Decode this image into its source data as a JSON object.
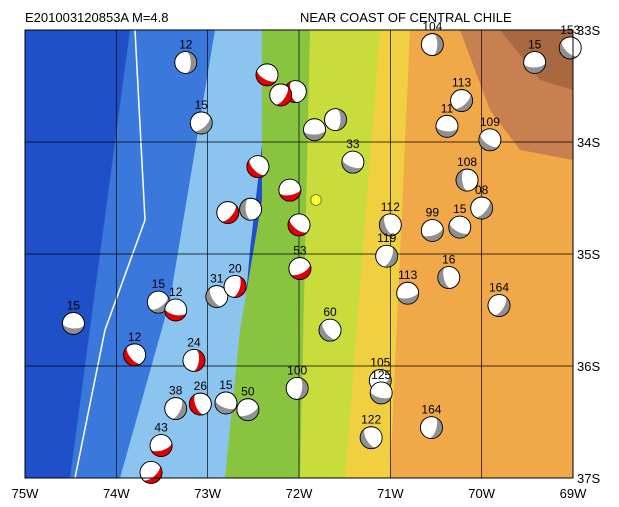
{
  "header": {
    "title": "E201003120853A M=4.8",
    "region": "NEAR COAST OF CENTRAL CHILE"
  },
  "map": {
    "lonlim": [
      -75,
      -69
    ],
    "latlim": [
      -37,
      -33
    ],
    "lonticks": [
      {
        "value": -75,
        "label": "75W"
      },
      {
        "value": -74,
        "label": "74W"
      },
      {
        "value": -73,
        "label": "73W"
      },
      {
        "value": -72,
        "label": "72W"
      },
      {
        "value": -71,
        "label": "71W"
      },
      {
        "value": -70,
        "label": "70W"
      },
      {
        "value": -69,
        "label": "69W"
      }
    ],
    "latticks": [
      {
        "value": -33,
        "label": "33S"
      },
      {
        "value": -34,
        "label": "34S"
      },
      {
        "value": -35,
        "label": "35S"
      },
      {
        "value": -36,
        "label": "36S"
      },
      {
        "value": -37,
        "label": "37S"
      }
    ],
    "events": [
      {
        "label": "12",
        "lon": -73.24,
        "lat": -33.29,
        "color": "#909090"
      },
      {
        "label": "15",
        "lon": -73.07,
        "lat": -33.83,
        "color": "#909090"
      },
      {
        "label": "15",
        "lon": -74.47,
        "lat": -35.62,
        "color": "#909090"
      },
      {
        "label": "12",
        "lon": -73.8,
        "lat": -35.9,
        "color": "#e00000"
      },
      {
        "label": "24",
        "lon": -73.15,
        "lat": -35.95,
        "color": "#e00000"
      },
      {
        "label": "15",
        "lon": -73.54,
        "lat": -35.43,
        "color": "#909090"
      },
      {
        "label": "12",
        "lon": -73.35,
        "lat": -35.5,
        "color": "#e00000"
      },
      {
        "label": "31",
        "lon": -72.9,
        "lat": -35.38,
        "color": "#909090"
      },
      {
        "label": "20",
        "lon": -72.7,
        "lat": -35.29,
        "color": "#e00000"
      },
      {
        "label": "53",
        "lon": -71.99,
        "lat": -35.13,
        "color": "#e00000"
      },
      {
        "label": "33",
        "lon": -71.41,
        "lat": -34.18,
        "color": "#909090"
      },
      {
        "label": "112",
        "lon": -71.0,
        "lat": -34.74,
        "color": "#909090"
      },
      {
        "label": "119",
        "lon": -71.04,
        "lat": -35.02,
        "color": "#909090"
      },
      {
        "label": "99",
        "lon": -70.54,
        "lat": -34.79,
        "color": "#909090"
      },
      {
        "label": "15",
        "lon": -70.24,
        "lat": -34.76,
        "color": "#909090"
      },
      {
        "label": "16",
        "lon": -70.36,
        "lat": -35.21,
        "color": "#909090"
      },
      {
        "label": "164",
        "lon": -69.81,
        "lat": -35.46,
        "color": "#909090"
      },
      {
        "label": "113",
        "lon": -70.81,
        "lat": -35.35,
        "color": "#909090"
      },
      {
        "label": "109",
        "lon": -69.91,
        "lat": -33.98,
        "color": "#909090"
      },
      {
        "label": "108",
        "lon": -70.16,
        "lat": -34.34,
        "color": "#909090"
      },
      {
        "label": "08",
        "lon": -70.0,
        "lat": -34.59,
        "color": "#909090"
      },
      {
        "label": "15",
        "lon": -69.42,
        "lat": -33.29,
        "color": "#909090"
      },
      {
        "label": "153",
        "lon": -69.03,
        "lat": -33.16,
        "color": "#909090"
      },
      {
        "label": "104",
        "lon": -70.54,
        "lat": -33.13,
        "color": "#909090"
      },
      {
        "label": "113",
        "lon": -70.22,
        "lat": -33.63,
        "color": "#909090"
      },
      {
        "label": "11",
        "lon": -70.38,
        "lat": -33.86,
        "color": "#909090"
      },
      {
        "label": "60",
        "lon": -71.66,
        "lat": -35.68,
        "color": "#909090"
      },
      {
        "label": "100",
        "lon": -72.02,
        "lat": -36.2,
        "color": "#909090"
      },
      {
        "label": "105",
        "lon": -71.11,
        "lat": -36.13,
        "color": "#909090"
      },
      {
        "label": "125",
        "lon": -71.1,
        "lat": -36.24,
        "color": "#909090"
      },
      {
        "label": "122",
        "lon": -71.21,
        "lat": -36.64,
        "color": "#909090"
      },
      {
        "label": "164",
        "lon": -70.55,
        "lat": -36.55,
        "color": "#909090"
      },
      {
        "label": "50",
        "lon": -72.56,
        "lat": -36.39,
        "color": "#909090"
      },
      {
        "label": "15",
        "lon": -72.8,
        "lat": -36.33,
        "color": "#909090"
      },
      {
        "label": "26",
        "lon": -73.08,
        "lat": -36.34,
        "color": "#e00000"
      },
      {
        "label": "38",
        "lon": -73.35,
        "lat": -36.38,
        "color": "#909090"
      },
      {
        "label": "43",
        "lon": -73.51,
        "lat": -36.71,
        "color": "#e00000"
      },
      {
        "lon": -72.35,
        "lat": -33.4,
        "color": "#e00000"
      },
      {
        "lon": -72.04,
        "lat": -33.55,
        "color": "#e00000"
      },
      {
        "lon": -72.2,
        "lat": -33.58,
        "color": "#e00000"
      },
      {
        "lon": -72.1,
        "lat": -34.43,
        "color": "#e00000"
      },
      {
        "lon": -72.0,
        "lat": -34.74,
        "color": "#e00000"
      },
      {
        "lon": -72.53,
        "lat": -34.6,
        "color": "#909090"
      },
      {
        "lon": -72.78,
        "lat": -34.63,
        "color": "#e00000"
      },
      {
        "lon": -71.83,
        "lat": -33.89,
        "color": "#909090"
      },
      {
        "lon": -72.45,
        "lat": -34.22,
        "color": "#e00000"
      },
      {
        "lon": -71.6,
        "lat": -33.8,
        "color": "#909090"
      },
      {
        "lon": -73.62,
        "lat": -36.95,
        "color": "#e00000"
      }
    ]
  }
}
